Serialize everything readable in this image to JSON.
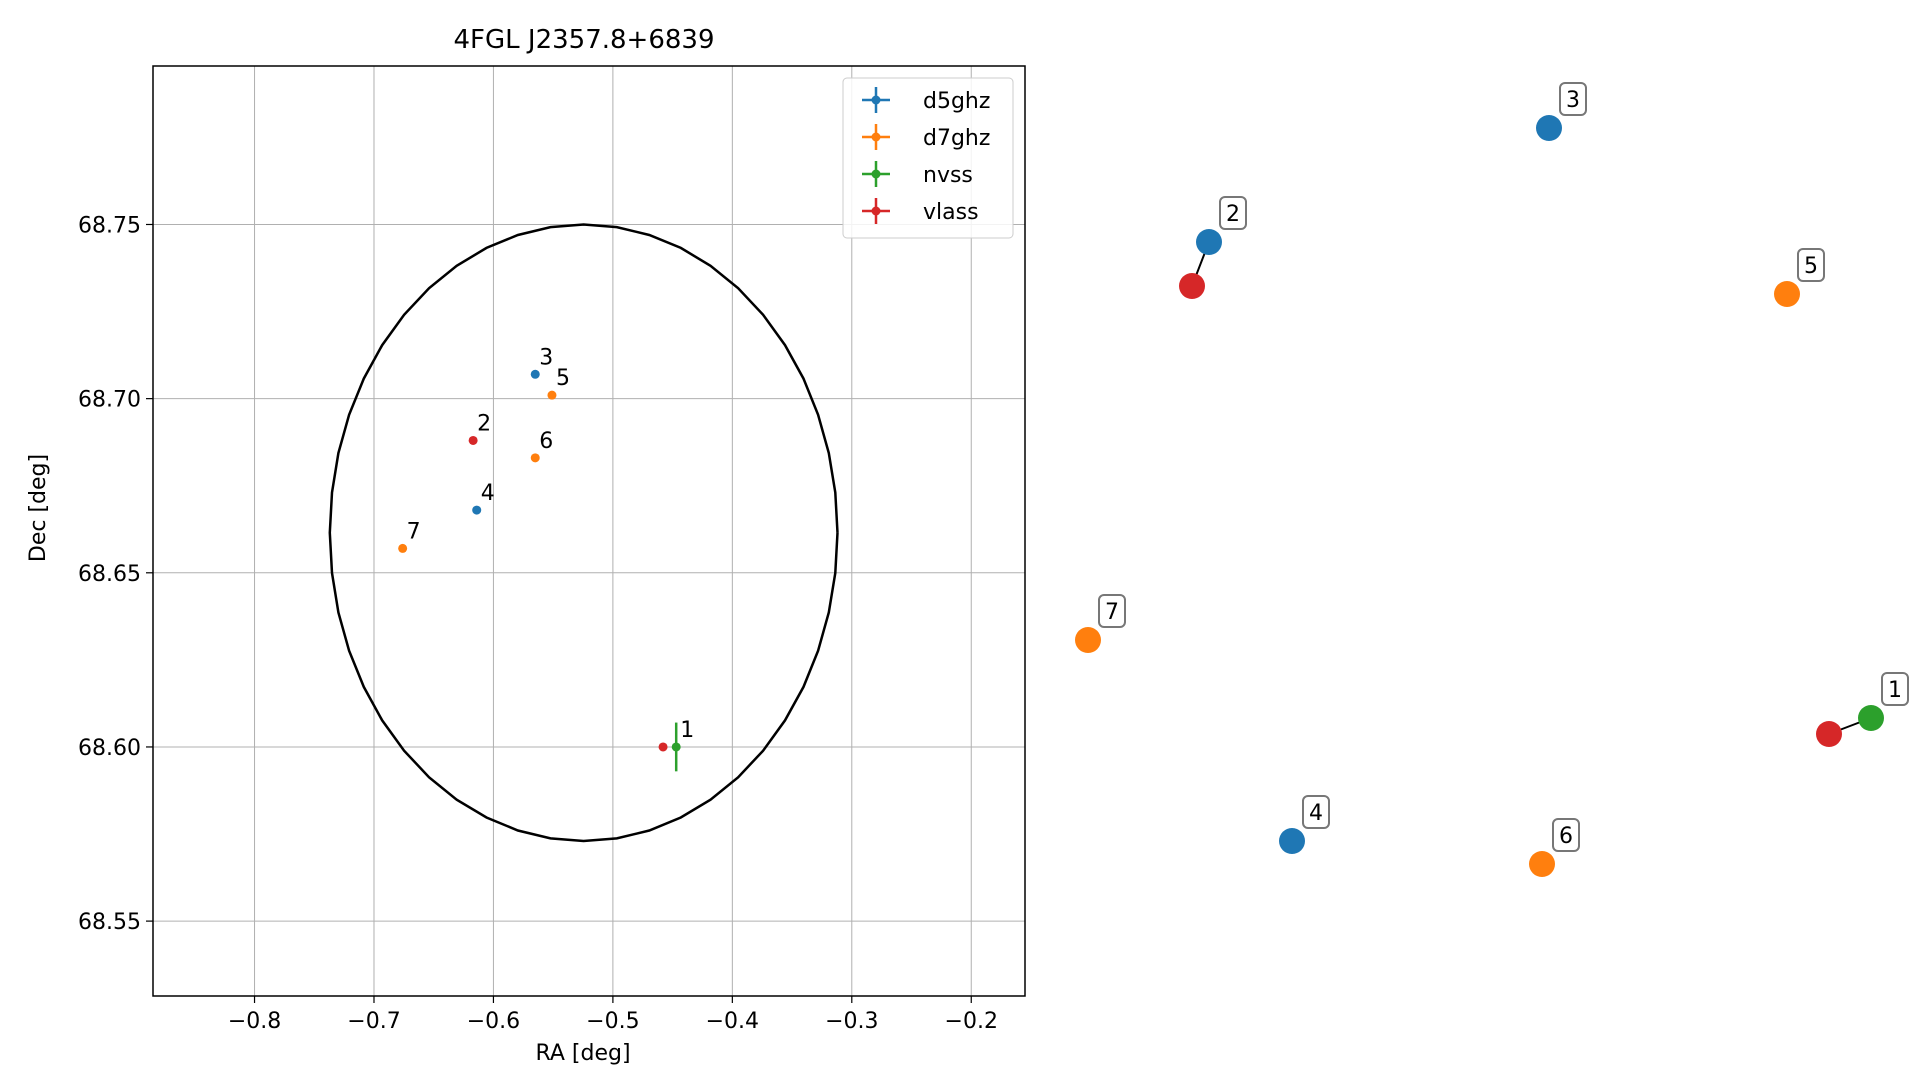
{
  "chart_data": [
    {
      "type": "scatter",
      "title": "4FGL J2357.8+6839",
      "xlabel": "RA [deg]",
      "ylabel": "Dec [deg]",
      "xlim": [
        -0.885,
        -0.155
      ],
      "ylim": [
        68.5285,
        68.7955
      ],
      "xticks": [
        -0.8,
        -0.7,
        -0.6,
        -0.5,
        -0.4,
        -0.3,
        -0.2
      ],
      "xtick_labels": [
        "−0.8",
        "−0.7",
        "−0.6",
        "−0.5",
        "−0.4",
        "−0.3",
        "−0.2"
      ],
      "yticks": [
        68.55,
        68.6,
        68.65,
        68.7,
        68.75
      ],
      "ytick_labels": [
        "68.55",
        "68.60",
        "68.65",
        "68.70",
        "68.75"
      ],
      "grid": true,
      "legend_position": "top-right",
      "ellipse": {
        "center": [
          -0.5245,
          68.6615
        ],
        "ra_radius": 0.2125,
        "dec_radius": 0.0885,
        "color": "#000000"
      },
      "series": [
        {
          "name": "d5ghz",
          "color": "#1f77b4",
          "points": [
            {
              "label": "3",
              "x": -0.565,
              "y": 68.707
            },
            {
              "label": "4",
              "x": -0.614,
              "y": 68.668
            }
          ]
        },
        {
          "name": "d7ghz",
          "color": "#ff7f0e",
          "points": [
            {
              "label": "5",
              "x": -0.551,
              "y": 68.701
            },
            {
              "label": "6",
              "x": -0.565,
              "y": 68.683
            },
            {
              "label": "7",
              "x": -0.676,
              "y": 68.657
            }
          ]
        },
        {
          "name": "nvss",
          "color": "#2ca02c",
          "points": [
            {
              "label": "1",
              "x": -0.447,
              "y": 68.6,
              "yerr": 0.007
            }
          ]
        },
        {
          "name": "vlass",
          "color": "#d62728",
          "points": [
            {
              "label": "2",
              "x": -0.617,
              "y": 68.688
            },
            {
              "label": "",
              "x": -0.458,
              "y": 68.6
            }
          ]
        }
      ]
    },
    {
      "type": "scatter",
      "title": "",
      "axes": false,
      "nodes": [
        {
          "label": "3",
          "color": "#1f77b4",
          "boxed": true
        },
        {
          "label": "2",
          "color": "#1f77b4",
          "boxed": true
        },
        {
          "label": "",
          "color": "#d62728",
          "boxed": false
        },
        {
          "label": "5",
          "color": "#ff7f0e",
          "boxed": true
        },
        {
          "label": "7",
          "color": "#ff7f0e",
          "boxed": true
        },
        {
          "label": "1",
          "color": "#2ca02c",
          "boxed": true
        },
        {
          "label": "",
          "color": "#d62728",
          "boxed": false
        },
        {
          "label": "4",
          "color": "#1f77b4",
          "boxed": true
        },
        {
          "label": "6",
          "color": "#ff7f0e",
          "boxed": true
        }
      ],
      "edges": [
        [
          1,
          2
        ],
        [
          5,
          6
        ]
      ]
    }
  ]
}
